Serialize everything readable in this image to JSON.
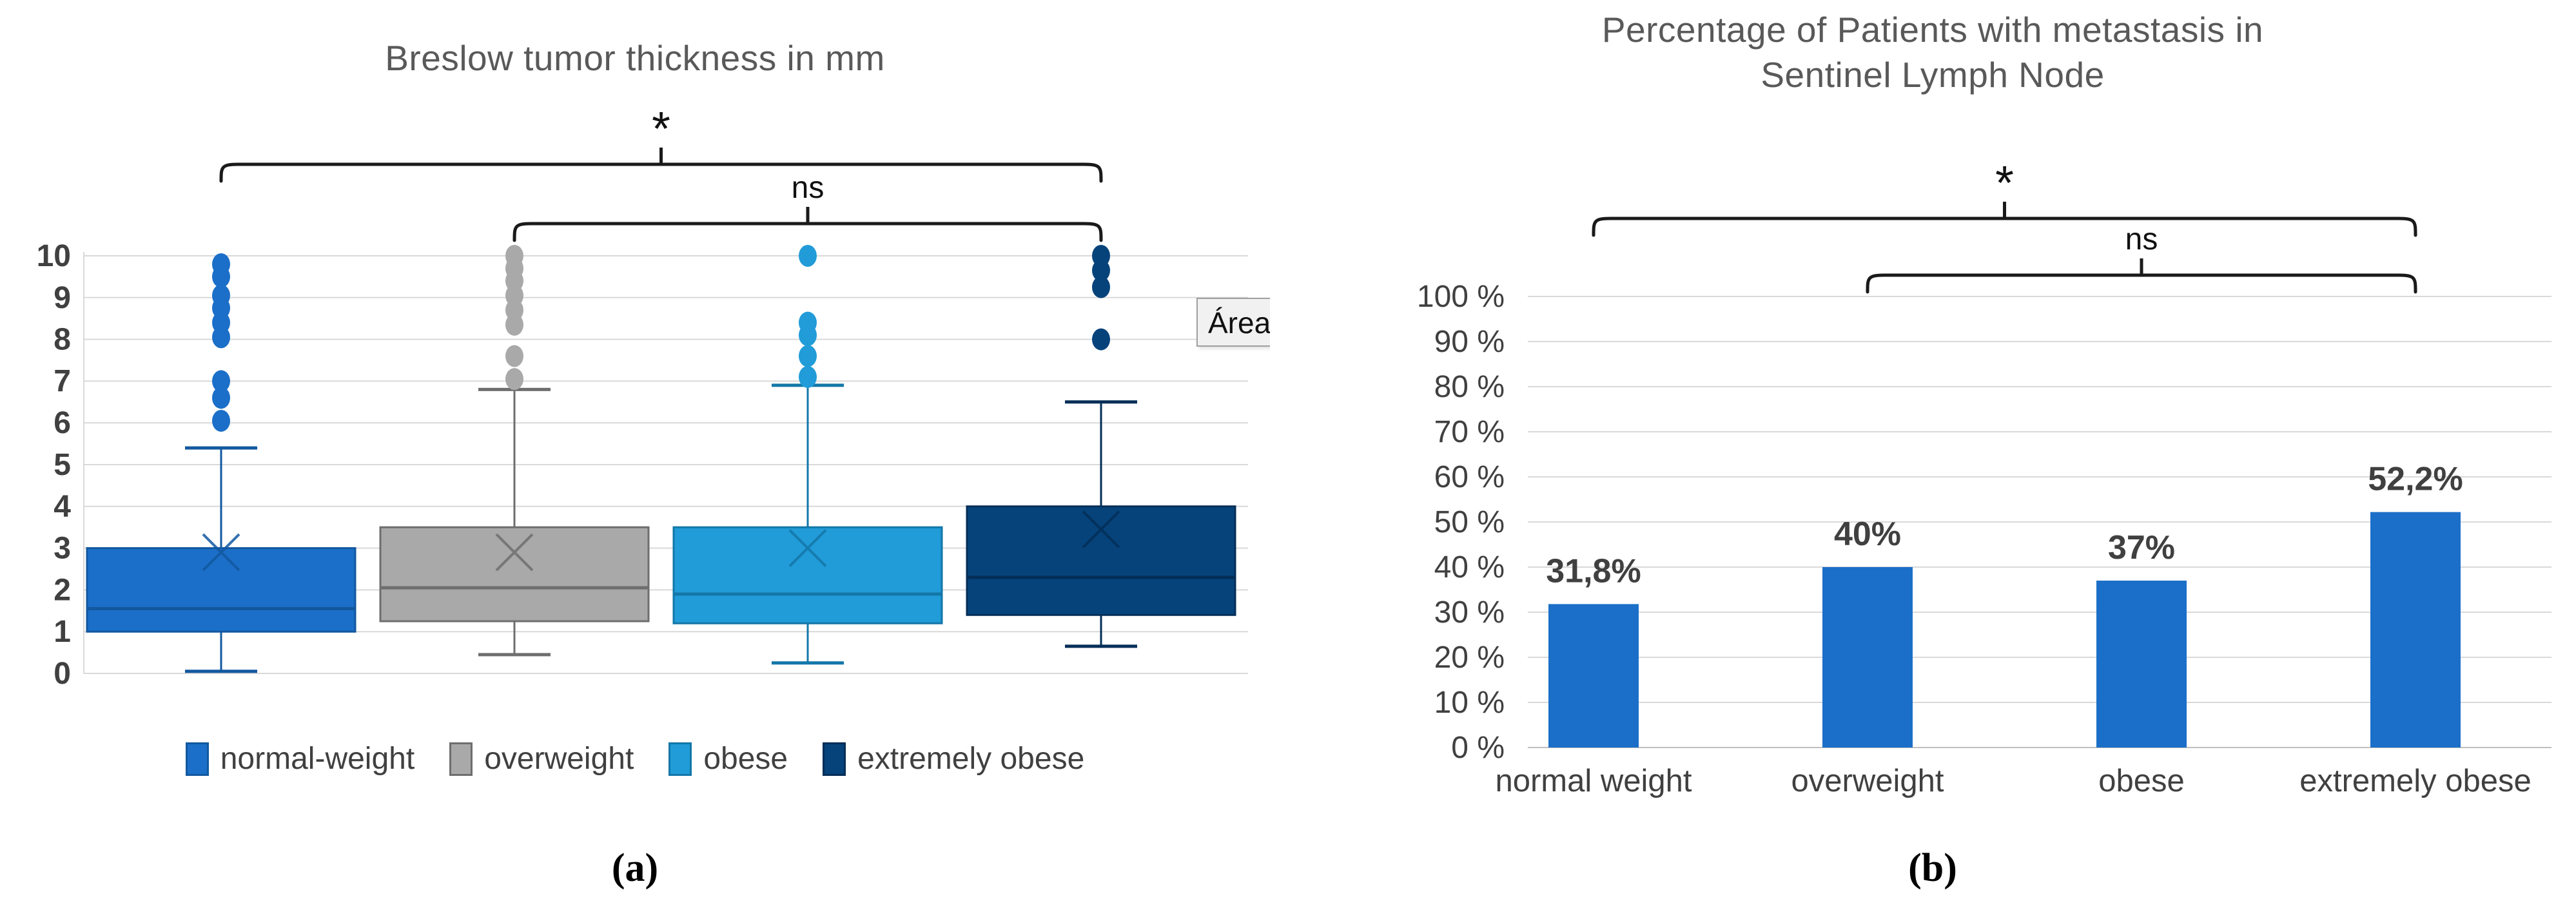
{
  "figure": {
    "captions": {
      "a": "(a)",
      "b": "(b)"
    },
    "colors": {
      "title_text": "#595959",
      "axis_text": "#404040",
      "gridline": "#D9D9D9",
      "baseline": "#BFBFBF",
      "bracket": "#1a1a1a",
      "bar_blue": "#1B6FC8"
    }
  },
  "chart_data": [
    {
      "type": "boxplot",
      "title": "Breslow tumor thickness in mm",
      "ylim": [
        0,
        10
      ],
      "yticks": [
        0,
        1,
        2,
        3,
        4,
        5,
        6,
        7,
        8,
        9,
        10
      ],
      "grid": "horizontal",
      "legend_position": "bottom",
      "overlay_tooltip": "Área",
      "series": [
        {
          "name": "normal-weight",
          "fill": "#1B6FC8",
          "stroke": "#12589F",
          "q1": 1.0,
          "median": 1.55,
          "q3": 3.0,
          "whisker_low": 0.05,
          "whisker_high": 5.4,
          "mean": 2.9,
          "outliers": [
            9.8,
            9.5,
            9.05,
            8.75,
            8.4,
            8.05,
            7.0,
            6.6,
            6.05
          ]
        },
        {
          "name": "overweight",
          "fill": "#A9A9A9",
          "stroke": "#6E6E6E",
          "q1": 1.25,
          "median": 2.05,
          "q3": 3.5,
          "whisker_low": 0.45,
          "whisker_high": 6.8,
          "mean": 2.9,
          "outliers": [
            10.0,
            9.7,
            9.4,
            9.05,
            8.7,
            8.35,
            7.6,
            7.05
          ]
        },
        {
          "name": "obese",
          "fill": "#219CD8",
          "stroke": "#1377A8",
          "q1": 1.2,
          "median": 1.9,
          "q3": 3.5,
          "whisker_low": 0.25,
          "whisker_high": 6.9,
          "mean": 3.0,
          "outliers": [
            10.0,
            8.4,
            8.1,
            7.6,
            7.1
          ]
        },
        {
          "name": "extremely obese",
          "fill": "#06437B",
          "stroke": "#032E57",
          "q1": 1.4,
          "median": 2.3,
          "q3": 4.0,
          "whisker_low": 0.65,
          "whisker_high": 6.5,
          "mean": 3.45,
          "outliers": [
            10.0,
            9.65,
            9.25,
            8.0
          ]
        }
      ],
      "significance": [
        {
          "label": "*",
          "from": 0,
          "to": 3
        },
        {
          "label": "ns",
          "from": 1,
          "to": 3
        }
      ]
    },
    {
      "type": "bar",
      "title_lines": [
        "Percentage of Patients with metastasis in",
        "Sentinel Lymph Node"
      ],
      "categories": [
        "normal weight",
        "overweight",
        "obese",
        "extremely obese"
      ],
      "values": [
        31.8,
        40,
        37,
        52.2
      ],
      "value_labels": [
        "31,8%",
        "40%",
        "37%",
        "52,2%"
      ],
      "bar_color": "#1B6FC8",
      "ylim": [
        0,
        100
      ],
      "yticks": {
        "values": [
          0,
          10,
          20,
          30,
          40,
          50,
          60,
          70,
          80,
          90,
          100
        ],
        "labels": [
          "0 %",
          "10 %",
          "20 %",
          "30 %",
          "40 %",
          "50 %",
          "60 %",
          "70 %",
          "80 %",
          "90 %",
          "100 %"
        ]
      },
      "grid": "horizontal",
      "significance": [
        {
          "label": "*",
          "from": 0,
          "to": 3
        },
        {
          "label": "ns",
          "from": 1,
          "to": 3
        }
      ]
    }
  ]
}
